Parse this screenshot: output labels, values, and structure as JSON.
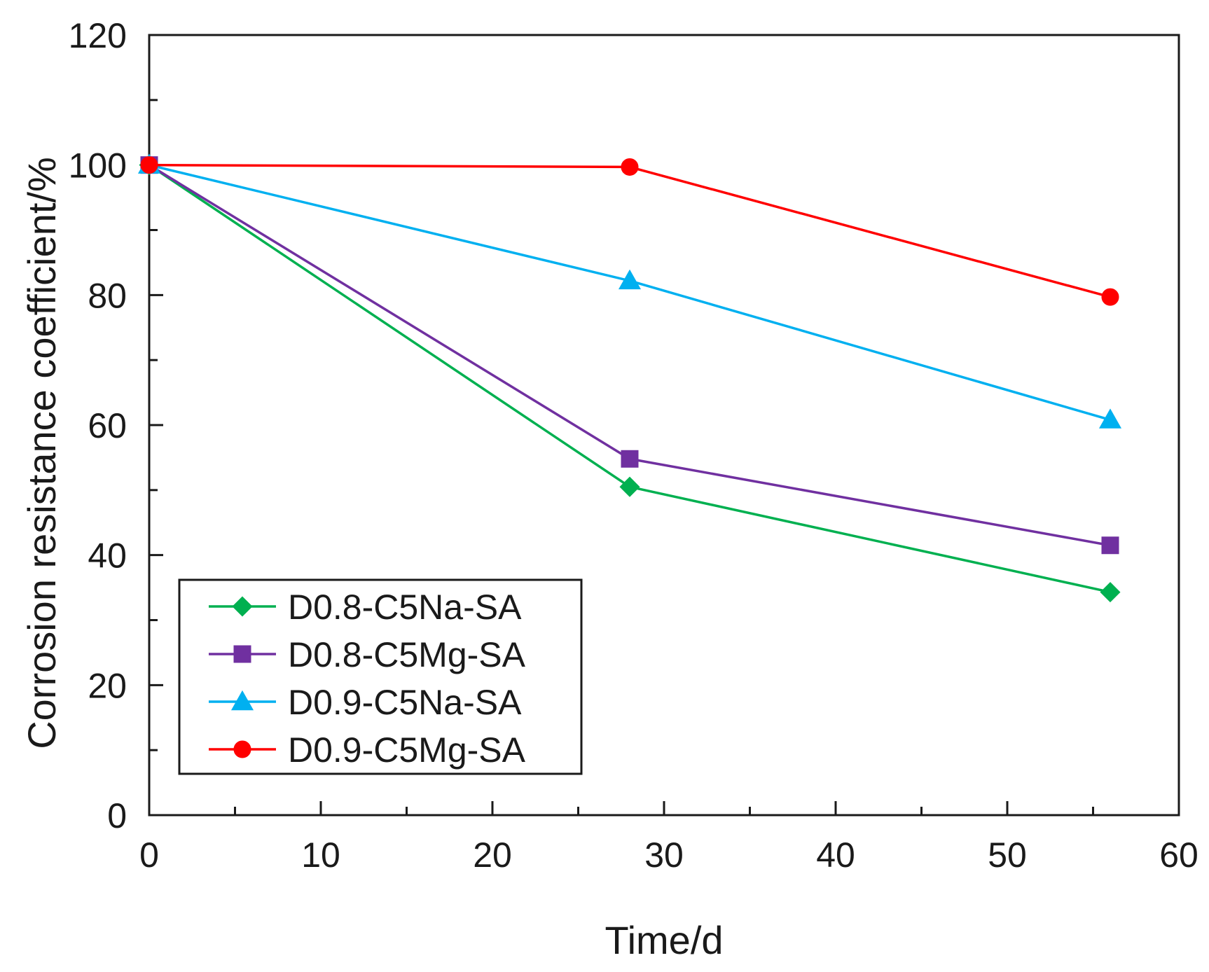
{
  "chart_data": {
    "type": "line",
    "title": "",
    "xlabel": "Time/d",
    "ylabel": "Corrosion resistance coefficient/%",
    "xlim": [
      0,
      60
    ],
    "ylim": [
      0,
      120
    ],
    "x_major_ticks": [
      0,
      10,
      20,
      30,
      40,
      50,
      60
    ],
    "x_tick_labels": [
      "0",
      "10",
      "20",
      "30",
      "40",
      "50",
      "60"
    ],
    "x_minor_ticks": [
      5,
      15,
      25,
      35,
      45,
      55
    ],
    "y_major_ticks": [
      0,
      20,
      40,
      60,
      80,
      100,
      120
    ],
    "y_tick_labels": [
      "0",
      "20",
      "40",
      "60",
      "80",
      "100",
      "120"
    ],
    "y_minor_ticks": [
      10,
      30,
      50,
      70,
      90,
      110
    ],
    "grid": false,
    "legend_position": "bottom-left",
    "series": [
      {
        "name": "D0.8-C5Na-SA",
        "color": "#00b050",
        "marker": "diamond",
        "x": [
          0,
          28,
          56
        ],
        "values": [
          100,
          50.5,
          34.3
        ]
      },
      {
        "name": "D0.8-C5Mg-SA",
        "color": "#7030a0",
        "marker": "square",
        "x": [
          0,
          28,
          56
        ],
        "values": [
          100,
          54.8,
          41.5
        ]
      },
      {
        "name": "D0.9-C5Na-SA",
        "color": "#00b0f0",
        "marker": "triangle",
        "x": [
          0,
          28,
          56
        ],
        "values": [
          100,
          82.2,
          60.8
        ]
      },
      {
        "name": "D0.9-C5Mg-SA",
        "color": "#ff0000",
        "marker": "circle",
        "x": [
          0,
          28,
          56
        ],
        "values": [
          100,
          99.7,
          79.7
        ]
      }
    ]
  }
}
